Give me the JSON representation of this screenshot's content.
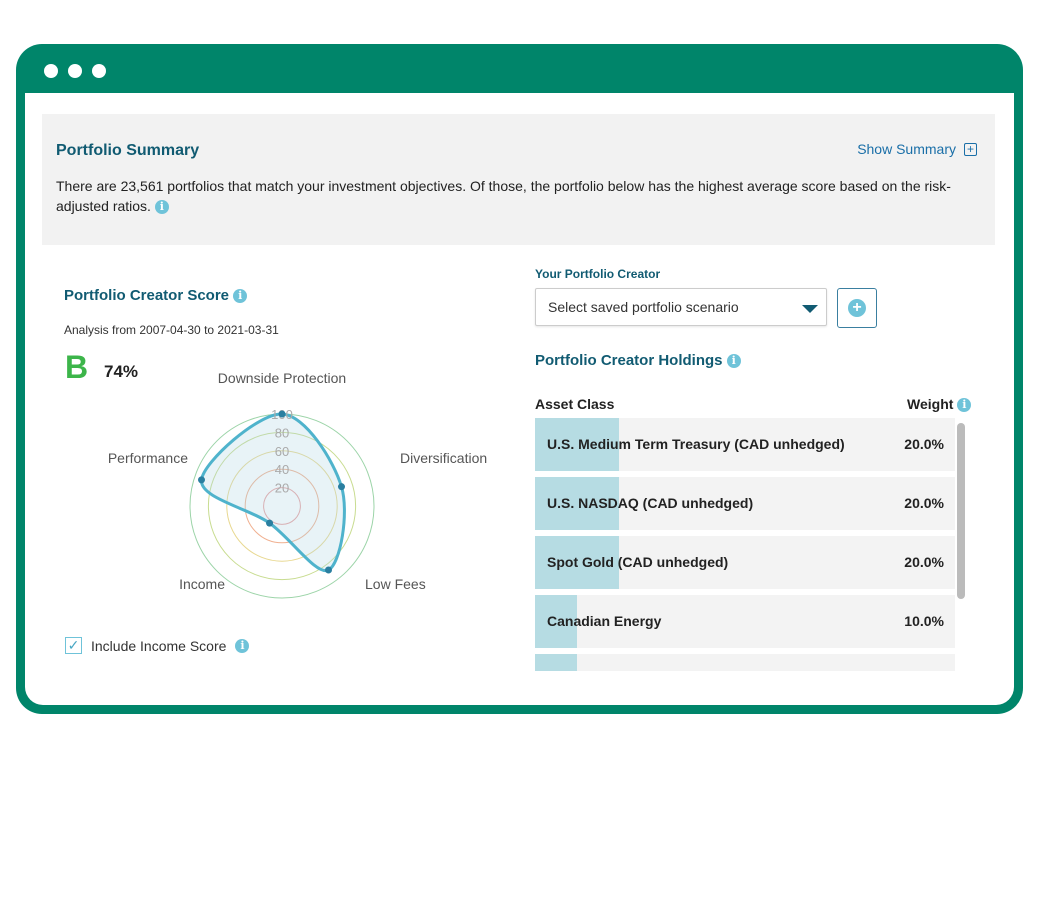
{
  "summary": {
    "title": "Portfolio Summary",
    "show_label": "Show Summary",
    "text": "There are 23,561 portfolios that match your investment objectives. Of those, the portfolio below has the highest average score based on the risk-adjusted ratios."
  },
  "score": {
    "title": "Portfolio Creator Score",
    "analysis": "Analysis from 2007-04-30 to 2021-03-31",
    "grade": "B",
    "percent": "74%",
    "include_income": "Include Income Score",
    "include_checked": true
  },
  "chart_data": {
    "type": "radar",
    "axes": [
      "Downside Protection",
      "Diversification",
      "Low Fees",
      "Income",
      "Performance"
    ],
    "values": [
      100,
      68,
      86,
      23,
      92
    ],
    "ticks": [
      "20",
      "40",
      "60",
      "80",
      "100"
    ],
    "range": [
      0,
      100
    ]
  },
  "creator": {
    "label": "Your Portfolio Creator",
    "select_placeholder": "Select saved portfolio scenario"
  },
  "holdings": {
    "title": "Portfolio Creator Holdings",
    "col_asset": "Asset Class",
    "col_weight": "Weight",
    "rows": [
      {
        "name": "U.S. Medium Term Treasury (CAD unhedged)",
        "weight": "20.0%",
        "pct": 20
      },
      {
        "name": "U.S. NASDAQ (CAD unhedged)",
        "weight": "20.0%",
        "pct": 20
      },
      {
        "name": "Spot Gold (CAD unhedged)",
        "weight": "20.0%",
        "pct": 20
      },
      {
        "name": "Canadian Energy",
        "weight": "10.0%",
        "pct": 10
      },
      {
        "name": "",
        "weight": "",
        "pct": 10
      }
    ]
  },
  "colors": {
    "brand": "#00856a",
    "accent": "#115b72",
    "line": "#4fb3cc",
    "grade": "#3cb54a"
  }
}
